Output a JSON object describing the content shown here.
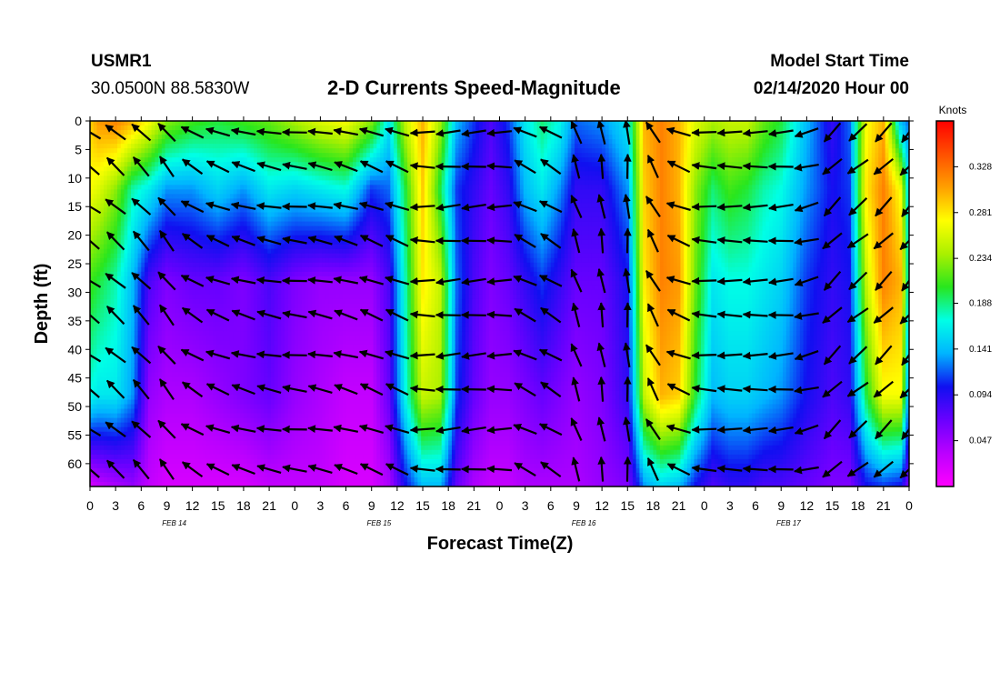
{
  "header": {
    "station_id": "USMR1",
    "coordinates": "30.0500N 88.5830W",
    "title": "2-D Currents Speed-Magnitude",
    "model_label": "Model Start Time",
    "model_time": "02/14/2020 Hour 00"
  },
  "colors": {
    "ramp": [
      "#ff00ff",
      "#bb00ff",
      "#6a00ff",
      "#1010f0",
      "#00b4ff",
      "#00ffe6",
      "#28e61e",
      "#aaf000",
      "#ffff00",
      "#ffa000",
      "#ff5000",
      "#ff0000"
    ],
    "arrow": "#000000",
    "frame": "#000000"
  },
  "chart_data": {
    "type": "heatmap",
    "title": "2-D Currents Speed-Magnitude",
    "xlabel": "Forecast Time(Z)",
    "ylabel": "Depth (ft)",
    "x_range_hours": [
      0,
      96
    ],
    "x_ticks": [
      0,
      3,
      6,
      9,
      12,
      15,
      18,
      21,
      24,
      27,
      30,
      33,
      36,
      39,
      42,
      45,
      48,
      51,
      54,
      57,
      60,
      63,
      66,
      69,
      72,
      75,
      78,
      81,
      84,
      87,
      90,
      93,
      96
    ],
    "x_tick_labels": [
      "0",
      "3",
      "6",
      "9",
      "12",
      "15",
      "18",
      "21",
      "0",
      "3",
      "6",
      "9",
      "12",
      "15",
      "18",
      "21",
      "0",
      "3",
      "6",
      "9",
      "12",
      "15",
      "18",
      "21",
      "0",
      "3",
      "6",
      "9",
      "12",
      "15",
      "18",
      "21",
      "0"
    ],
    "day_labels": [
      {
        "text": "FEB 14",
        "hour": 12
      },
      {
        "text": "FEB 15",
        "hour": 36
      },
      {
        "text": "FEB 16",
        "hour": 60
      },
      {
        "text": "FEB 17",
        "hour": 84
      }
    ],
    "y_range_ft": [
      0,
      64
    ],
    "y_ticks": [
      0,
      5,
      10,
      15,
      20,
      25,
      30,
      35,
      40,
      45,
      50,
      55,
      60
    ],
    "y_tick_labels": [
      "0",
      "5",
      "10",
      "15",
      "20",
      "25",
      "30",
      "35",
      "40",
      "45",
      "50",
      "55",
      "60"
    ],
    "colorbar": {
      "unit": "Knots",
      "range": [
        0,
        0.375
      ],
      "ticks": [
        0.047,
        0.094,
        0.141,
        0.188,
        0.234,
        0.281,
        0.328
      ],
      "tick_labels": [
        "0.047",
        "0.094",
        "0.141",
        "0.188",
        "0.234",
        "0.281",
        "0.328"
      ]
    },
    "speed_columns": {
      "hours": [
        0,
        1,
        3,
        5,
        7,
        9,
        12,
        15,
        18,
        21,
        24,
        27,
        30,
        33,
        35,
        37,
        39,
        41,
        43,
        45,
        47,
        49,
        51,
        53,
        55,
        57,
        60,
        63,
        65,
        67,
        69,
        71,
        73,
        75,
        77,
        79,
        81,
        84,
        87,
        89,
        91,
        93,
        95,
        96
      ],
      "surface": [
        0.29,
        0.31,
        0.32,
        0.3,
        0.27,
        0.23,
        0.21,
        0.2,
        0.21,
        0.22,
        0.24,
        0.26,
        0.27,
        0.23,
        0.16,
        0.25,
        0.3,
        0.24,
        0.14,
        0.11,
        0.08,
        0.11,
        0.16,
        0.19,
        0.17,
        0.12,
        0.13,
        0.16,
        0.3,
        0.32,
        0.3,
        0.26,
        0.24,
        0.25,
        0.25,
        0.22,
        0.2,
        0.14,
        0.09,
        0.12,
        0.27,
        0.3,
        0.14,
        0.12
      ],
      "upper_mid": [
        0.27,
        0.26,
        0.23,
        0.18,
        0.16,
        0.13,
        0.13,
        0.15,
        0.13,
        0.16,
        0.15,
        0.16,
        0.17,
        0.11,
        0.12,
        0.2,
        0.29,
        0.2,
        0.11,
        0.09,
        0.07,
        0.09,
        0.14,
        0.16,
        0.13,
        0.09,
        0.09,
        0.13,
        0.29,
        0.32,
        0.3,
        0.23,
        0.19,
        0.21,
        0.2,
        0.18,
        0.17,
        0.13,
        0.1,
        0.11,
        0.28,
        0.32,
        0.27,
        0.15
      ],
      "mid": [
        0.21,
        0.2,
        0.18,
        0.14,
        0.08,
        0.06,
        0.07,
        0.07,
        0.06,
        0.08,
        0.06,
        0.05,
        0.05,
        0.05,
        0.08,
        0.18,
        0.28,
        0.25,
        0.12,
        0.08,
        0.06,
        0.07,
        0.09,
        0.11,
        0.09,
        0.07,
        0.07,
        0.1,
        0.28,
        0.32,
        0.31,
        0.22,
        0.16,
        0.17,
        0.17,
        0.16,
        0.15,
        0.11,
        0.09,
        0.1,
        0.25,
        0.32,
        0.3,
        0.16
      ],
      "lower_mid": [
        0.17,
        0.16,
        0.16,
        0.13,
        0.05,
        0.04,
        0.04,
        0.05,
        0.06,
        0.07,
        0.05,
        0.04,
        0.03,
        0.03,
        0.07,
        0.17,
        0.25,
        0.24,
        0.11,
        0.07,
        0.05,
        0.05,
        0.06,
        0.07,
        0.06,
        0.05,
        0.06,
        0.09,
        0.25,
        0.3,
        0.29,
        0.2,
        0.14,
        0.15,
        0.15,
        0.14,
        0.13,
        0.1,
        0.08,
        0.09,
        0.2,
        0.27,
        0.27,
        0.12
      ],
      "bottom": [
        0.02,
        0.03,
        0.04,
        0.05,
        0.03,
        0.02,
        0.02,
        0.02,
        0.02,
        0.03,
        0.03,
        0.03,
        0.02,
        0.02,
        0.04,
        0.1,
        0.14,
        0.14,
        0.07,
        0.04,
        0.03,
        0.03,
        0.04,
        0.04,
        0.04,
        0.04,
        0.05,
        0.06,
        0.13,
        0.15,
        0.14,
        0.1,
        0.08,
        0.09,
        0.09,
        0.08,
        0.08,
        0.07,
        0.06,
        0.06,
        0.1,
        0.11,
        0.1,
        0.06
      ]
    },
    "speed_rows_ft": [
      0,
      12,
      28,
      48,
      64
    ],
    "vectors": {
      "hours": [
        0,
        3,
        6,
        9,
        12,
        15,
        18,
        21,
        24,
        27,
        30,
        33,
        36,
        39,
        42,
        45,
        48,
        51,
        54,
        57,
        60,
        63,
        66,
        69,
        72,
        75,
        78,
        81,
        84,
        87,
        90,
        93,
        96
      ],
      "depths_ft": [
        2,
        8,
        15,
        21,
        28,
        34,
        41,
        47,
        54,
        61
      ],
      "direction_deg_by_time": [
        215,
        220,
        225,
        230,
        210,
        200,
        195,
        190,
        185,
        190,
        195,
        200,
        200,
        180,
        175,
        175,
        178,
        205,
        210,
        250,
        260,
        265,
        240,
        200,
        182,
        180,
        178,
        175,
        165,
        135,
        140,
        135,
        130
      ]
    },
    "x_axis_label_text": "Forecast Time(Z)",
    "y_axis_label_text": "Depth (ft)"
  }
}
